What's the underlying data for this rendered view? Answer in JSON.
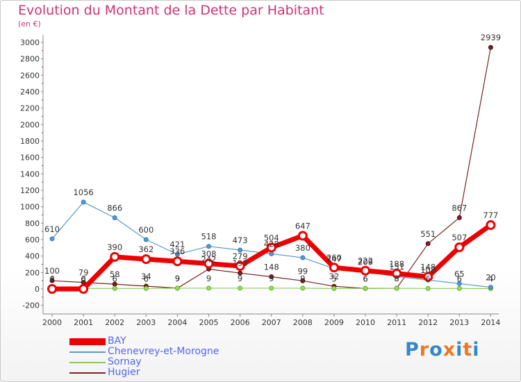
{
  "title": "Evolution du Montant de la Dette par Habitant",
  "subtitle": "(en €)",
  "logo": "Proxiti",
  "chart_data": {
    "type": "line",
    "title": "Evolution du Montant de la Dette par Habitant",
    "subtitle": "(en €)",
    "xlabel": "",
    "ylabel": "",
    "x": [
      "2000",
      "2001",
      "2002",
      "2003",
      "2004",
      "2005",
      "2006",
      "2007",
      "2008",
      "2009",
      "2010",
      "2011",
      "2012",
      "2013",
      "2014"
    ],
    "ylim": [
      -200,
      3000
    ],
    "yticks": [
      -200,
      0,
      200,
      400,
      600,
      800,
      1000,
      1200,
      1400,
      1600,
      1800,
      2000,
      2200,
      2400,
      2600,
      2800,
      3000
    ],
    "grid": false,
    "legend_position": "bottom-left",
    "series": [
      {
        "name": "BAY",
        "color": "#ee0000",
        "values": [
          0,
          0,
          390,
          362,
          336,
          308,
          279,
          504,
          647,
          260,
          222,
          188,
          148,
          507,
          777
        ],
        "labels": [
          "0",
          "0",
          "390",
          "362",
          "336",
          "308",
          "279",
          "504",
          "647",
          "260",
          "222",
          "188",
          "148",
          "507",
          "777"
        ]
      },
      {
        "name": "Chenevrey-et-Morogne",
        "color": "#5599cc",
        "values": [
          610,
          1056,
          866,
          600,
          421,
          518,
          473,
          428,
          380,
          247,
          209,
          151,
          108,
          65,
          20
        ],
        "labels": [
          "610",
          "1056",
          "866",
          "600",
          "421",
          "518",
          "473",
          "428",
          "380",
          "247",
          "209",
          "151",
          "108",
          "65",
          "20"
        ]
      },
      {
        "name": "Sornay",
        "color": "#88cc55",
        "values": [
          6,
          6,
          6,
          6,
          9,
          9,
          9,
          9,
          9,
          5,
          6,
          8,
          6,
          6,
          4
        ],
        "labels": [
          "6",
          "6",
          "6",
          "6",
          "9",
          "9",
          "9",
          "9",
          "9",
          "5",
          "6",
          "8",
          "6",
          "6",
          "4"
        ]
      },
      {
        "name": "Hugier",
        "color": "#772222",
        "values": [
          100,
          79,
          58,
          34,
          9,
          242,
          193,
          148,
          99,
          32,
          6,
          8,
          551,
          867,
          2939
        ],
        "labels": [
          "100",
          "79",
          "58",
          "34",
          "9",
          "242",
          "193",
          "148",
          "99",
          "32",
          "6",
          "8",
          "551",
          "867",
          "2939"
        ]
      }
    ]
  }
}
